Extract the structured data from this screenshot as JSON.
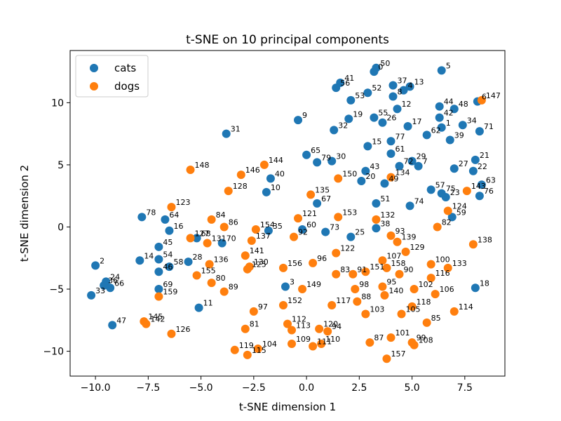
{
  "chart_data": {
    "type": "scatter",
    "title": "t-SNE on 10 principal components",
    "xlabel": "t-SNE dimension 1",
    "ylabel": "t-SNE dimension 2",
    "xlim": [
      -11.2,
      9.4
    ],
    "ylim": [
      -12,
      14.2
    ],
    "xticks": [
      -10,
      -7.5,
      -5,
      -2.5,
      0,
      2.5,
      5,
      7.5
    ],
    "xtick_labels": [
      "−10.0",
      "−7.5",
      "−5.0",
      "−2.5",
      "0.0",
      "2.5",
      "5.0",
      "7.5"
    ],
    "yticks": [
      -10,
      -5,
      0,
      5,
      10
    ],
    "ytick_labels": [
      "−10",
      "−5",
      "0",
      "5",
      "10"
    ],
    "grid": false,
    "legend_position": "top-left",
    "series": [
      {
        "name": "cats",
        "color": "#1f77b4",
        "points": [
          {
            "label": "0",
            "x": 3.2,
            "y": 12.5
          },
          {
            "label": "1",
            "x": 6.4,
            "y": 8.0
          },
          {
            "label": "2",
            "x": -10.0,
            "y": -3.1
          },
          {
            "label": "3",
            "x": -1.0,
            "y": -4.8
          },
          {
            "label": "4",
            "x": 4.6,
            "y": 11.0
          },
          {
            "label": "5",
            "x": 6.4,
            "y": 12.6
          },
          {
            "label": "6",
            "x": 8.1,
            "y": 10.1
          },
          {
            "label": "7",
            "x": 5.3,
            "y": 4.9
          },
          {
            "label": "8",
            "x": 4.1,
            "y": 10.5
          },
          {
            "label": "9",
            "x": -0.4,
            "y": 8.6
          },
          {
            "label": "10",
            "x": -1.9,
            "y": 2.8
          },
          {
            "label": "11",
            "x": -5.1,
            "y": -6.5
          },
          {
            "label": "12",
            "x": 4.3,
            "y": 9.5
          },
          {
            "label": "13",
            "x": 4.9,
            "y": 11.3
          },
          {
            "label": "14",
            "x": -7.9,
            "y": -2.7
          },
          {
            "label": "15",
            "x": 2.9,
            "y": 6.5
          },
          {
            "label": "16",
            "x": -6.5,
            "y": -0.3
          },
          {
            "label": "17",
            "x": 4.8,
            "y": 8.1
          },
          {
            "label": "18",
            "x": 8.0,
            "y": -4.9
          },
          {
            "label": "19",
            "x": 2.0,
            "y": 8.7
          },
          {
            "label": "20",
            "x": 2.6,
            "y": 3.7
          },
          {
            "label": "21",
            "x": 8.0,
            "y": 5.4
          },
          {
            "label": "22",
            "x": 7.9,
            "y": 4.5
          },
          {
            "label": "23",
            "x": 6.6,
            "y": 2.4
          },
          {
            "label": "24",
            "x": -9.5,
            "y": -4.4
          },
          {
            "label": "25",
            "x": 2.1,
            "y": -0.8
          },
          {
            "label": "26",
            "x": 3.6,
            "y": 8.4
          },
          {
            "label": "27",
            "x": 7.0,
            "y": 4.7
          },
          {
            "label": "28",
            "x": -5.6,
            "y": -2.8
          },
          {
            "label": "29",
            "x": 5.0,
            "y": 5.3
          },
          {
            "label": "30",
            "x": 1.2,
            "y": 5.3
          },
          {
            "label": "31",
            "x": -3.8,
            "y": 7.5
          },
          {
            "label": "32",
            "x": 1.3,
            "y": 7.8
          },
          {
            "label": "33",
            "x": -10.2,
            "y": -5.5
          },
          {
            "label": "34",
            "x": 7.4,
            "y": 8.2
          },
          {
            "label": "35",
            "x": -1.8,
            "y": -0.3
          },
          {
            "label": "36",
            "x": -9.6,
            "y": -4.7
          },
          {
            "label": "37",
            "x": 4.1,
            "y": 11.4
          },
          {
            "label": "38",
            "x": 3.3,
            "y": -0.1
          },
          {
            "label": "39",
            "x": 6.8,
            "y": 7.0
          },
          {
            "label": "40",
            "x": -1.7,
            "y": 3.9
          },
          {
            "label": "41",
            "x": 1.6,
            "y": 11.6
          },
          {
            "label": "42",
            "x": 6.3,
            "y": 8.8
          },
          {
            "label": "43",
            "x": 2.8,
            "y": 4.5
          },
          {
            "label": "44",
            "x": 6.3,
            "y": 9.7
          },
          {
            "label": "45",
            "x": -7.0,
            "y": -1.6
          },
          {
            "label": "46",
            "x": -7.0,
            "y": -3.6
          },
          {
            "label": "47",
            "x": -9.2,
            "y": -7.9
          },
          {
            "label": "48",
            "x": 7.0,
            "y": 9.5
          },
          {
            "label": "49",
            "x": 3.7,
            "y": 3.5
          },
          {
            "label": "50",
            "x": 3.3,
            "y": 12.8
          },
          {
            "label": "51",
            "x": 3.3,
            "y": 1.9
          },
          {
            "label": "52",
            "x": 2.9,
            "y": 10.8
          },
          {
            "label": "53",
            "x": 2.1,
            "y": 10.2
          },
          {
            "label": "54",
            "x": -7.0,
            "y": -2.6
          },
          {
            "label": "55",
            "x": 3.2,
            "y": 8.8
          },
          {
            "label": "56",
            "x": 1.4,
            "y": 11.2
          },
          {
            "label": "57",
            "x": 5.9,
            "y": 3.0
          },
          {
            "label": "58",
            "x": -6.5,
            "y": -3.2
          },
          {
            "label": "59",
            "x": 6.9,
            "y": 0.8
          },
          {
            "label": "60",
            "x": -0.2,
            "y": -0.2
          },
          {
            "label": "61",
            "x": 4.0,
            "y": 5.9
          },
          {
            "label": "62",
            "x": 5.7,
            "y": 7.4
          },
          {
            "label": "63",
            "x": 8.3,
            "y": 3.4
          },
          {
            "label": "64",
            "x": -6.7,
            "y": 0.6
          },
          {
            "label": "65",
            "x": 0.0,
            "y": 5.8
          },
          {
            "label": "66",
            "x": -9.3,
            "y": -4.9
          },
          {
            "label": "67",
            "x": 0.5,
            "y": 1.9
          },
          {
            "label": "68",
            "x": -5.2,
            "y": -0.9
          },
          {
            "label": "69",
            "x": -7.0,
            "y": -5.0
          },
          {
            "label": "70",
            "x": -4.0,
            "y": -1.3
          },
          {
            "label": "71",
            "x": 8.2,
            "y": 7.7
          },
          {
            "label": "72",
            "x": 4.4,
            "y": 4.9
          },
          {
            "label": "73",
            "x": 0.9,
            "y": -0.4
          },
          {
            "label": "74",
            "x": 4.9,
            "y": 1.7
          },
          {
            "label": "75",
            "x": 6.4,
            "y": 2.7
          },
          {
            "label": "76",
            "x": 8.2,
            "y": 2.5
          },
          {
            "label": "77",
            "x": 4.0,
            "y": 6.9
          },
          {
            "label": "78",
            "x": -7.8,
            "y": 0.8
          },
          {
            "label": "79",
            "x": 0.5,
            "y": 5.2
          }
        ]
      },
      {
        "name": "dogs",
        "color": "#ff7f0e",
        "points": [
          {
            "label": "80",
            "x": -4.5,
            "y": -4.5
          },
          {
            "label": "81",
            "x": -2.9,
            "y": -8.2
          },
          {
            "label": "82",
            "x": 6.2,
            "y": 0.0
          },
          {
            "label": "83",
            "x": 1.4,
            "y": -3.8
          },
          {
            "label": "84",
            "x": -4.5,
            "y": 0.6
          },
          {
            "label": "85",
            "x": 5.7,
            "y": -7.7
          },
          {
            "label": "86",
            "x": -3.9,
            "y": 0.0
          },
          {
            "label": "87",
            "x": 3.0,
            "y": -9.3
          },
          {
            "label": "88",
            "x": 2.4,
            "y": -6.0
          },
          {
            "label": "89",
            "x": -3.9,
            "y": -5.2
          },
          {
            "label": "90",
            "x": 4.4,
            "y": -3.8
          },
          {
            "label": "91",
            "x": 2.2,
            "y": -3.8
          },
          {
            "label": "92",
            "x": -0.6,
            "y": -0.8
          },
          {
            "label": "93",
            "x": 4.0,
            "y": -0.7
          },
          {
            "label": "94",
            "x": 1.0,
            "y": -8.4
          },
          {
            "label": "95",
            "x": 3.6,
            "y": -4.8
          },
          {
            "label": "96",
            "x": 0.3,
            "y": -2.9
          },
          {
            "label": "97",
            "x": -2.5,
            "y": -6.8
          },
          {
            "label": "98",
            "x": 2.3,
            "y": -5.0
          },
          {
            "label": "99",
            "x": 5.0,
            "y": -9.3
          },
          {
            "label": "100",
            "x": 5.9,
            "y": -3.0
          },
          {
            "label": "101",
            "x": 4.0,
            "y": -8.9
          },
          {
            "label": "102",
            "x": 5.1,
            "y": -5.0
          },
          {
            "label": "103",
            "x": 2.8,
            "y": -7.0
          },
          {
            "label": "104",
            "x": -2.3,
            "y": -9.8
          },
          {
            "label": "105",
            "x": 4.5,
            "y": -7.0
          },
          {
            "label": "106",
            "x": 6.1,
            "y": -5.4
          },
          {
            "label": "107",
            "x": 3.6,
            "y": -2.7
          },
          {
            "label": "108",
            "x": 5.1,
            "y": -9.5
          },
          {
            "label": "109",
            "x": -0.7,
            "y": -9.4
          },
          {
            "label": "110",
            "x": 0.7,
            "y": -9.4
          },
          {
            "label": "111",
            "x": 0.3,
            "y": -9.6
          },
          {
            "label": "112",
            "x": -0.9,
            "y": -7.8
          },
          {
            "label": "113",
            "x": -0.7,
            "y": -8.3
          },
          {
            "label": "114",
            "x": 7.0,
            "y": -6.8
          },
          {
            "label": "115",
            "x": -2.8,
            "y": -10.3
          },
          {
            "label": "116",
            "x": 5.9,
            "y": -4.1
          },
          {
            "label": "117",
            "x": 1.2,
            "y": -6.3
          },
          {
            "label": "118",
            "x": 5.0,
            "y": -6.4
          },
          {
            "label": "119",
            "x": -3.4,
            "y": -9.9
          },
          {
            "label": "120",
            "x": 0.6,
            "y": -8.2
          },
          {
            "label": "121",
            "x": -0.4,
            "y": 0.7
          },
          {
            "label": "122",
            "x": 1.4,
            "y": -2.1
          },
          {
            "label": "123",
            "x": -6.4,
            "y": 1.6
          },
          {
            "label": "124",
            "x": 6.7,
            "y": 1.3
          },
          {
            "label": "125",
            "x": -2.8,
            "y": -3.4
          },
          {
            "label": "126",
            "x": -6.4,
            "y": -8.6
          },
          {
            "label": "127",
            "x": -5.5,
            "y": -0.9
          },
          {
            "label": "128",
            "x": -3.7,
            "y": 2.9
          },
          {
            "label": "129",
            "x": 4.7,
            "y": -2.0
          },
          {
            "label": "130",
            "x": -2.7,
            "y": -3.2
          },
          {
            "label": "131",
            "x": -4.7,
            "y": -1.3
          },
          {
            "label": "132",
            "x": 3.3,
            "y": 0.6
          },
          {
            "label": "133",
            "x": 6.7,
            "y": -3.3
          },
          {
            "label": "134",
            "x": 4.0,
            "y": 4.0
          },
          {
            "label": "135",
            "x": 0.2,
            "y": 2.6
          },
          {
            "label": "136",
            "x": -4.6,
            "y": -3.0
          },
          {
            "label": "137",
            "x": -2.6,
            "y": -1.1
          },
          {
            "label": "138",
            "x": 7.9,
            "y": -1.4
          },
          {
            "label": "139",
            "x": 4.3,
            "y": -1.2
          },
          {
            "label": "140",
            "x": 3.7,
            "y": -5.5
          },
          {
            "label": "141",
            "x": -2.9,
            "y": -2.3
          },
          {
            "label": "142",
            "x": -7.6,
            "y": -7.8
          },
          {
            "label": "143",
            "x": 7.6,
            "y": 2.9
          },
          {
            "label": "144",
            "x": -2.0,
            "y": 5.0
          },
          {
            "label": "145",
            "x": -7.7,
            "y": -7.6
          },
          {
            "label": "146",
            "x": -3.1,
            "y": 4.2
          },
          {
            "label": "147",
            "x": 8.3,
            "y": 10.2
          },
          {
            "label": "148",
            "x": -5.5,
            "y": 4.6
          },
          {
            "label": "149",
            "x": -0.2,
            "y": -5.0
          },
          {
            "label": "150",
            "x": 1.5,
            "y": 3.9
          },
          {
            "label": "151",
            "x": 2.8,
            "y": -3.6
          },
          {
            "label": "152",
            "x": -1.1,
            "y": -6.3
          },
          {
            "label": "153",
            "x": 1.5,
            "y": 0.8
          },
          {
            "label": "154",
            "x": -2.4,
            "y": -0.2
          },
          {
            "label": "155",
            "x": -5.2,
            "y": -3.9
          },
          {
            "label": "156",
            "x": -1.1,
            "y": -3.3
          },
          {
            "label": "157",
            "x": 3.8,
            "y": -10.6
          },
          {
            "label": "158",
            "x": 3.8,
            "y": -3.3
          },
          {
            "label": "159",
            "x": -7.0,
            "y": -5.6
          }
        ]
      }
    ]
  }
}
